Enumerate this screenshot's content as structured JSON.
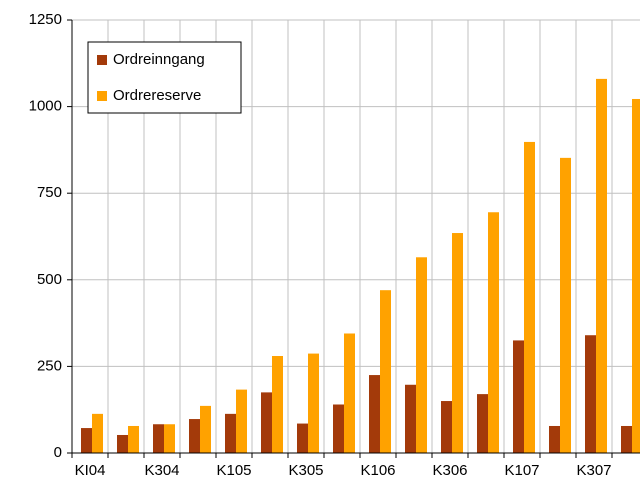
{
  "chart_data": {
    "type": "bar",
    "categories": [
      "KI04",
      null,
      "K304",
      null,
      "K105",
      null,
      "K305",
      null,
      "K106",
      null,
      "K306",
      null,
      "K107",
      null,
      "K307",
      null
    ],
    "series": [
      {
        "name": "Ordreinngang",
        "color": "#a33a0a",
        "values": [
          72,
          52,
          83,
          98,
          113,
          175,
          85,
          140,
          225,
          197,
          150,
          170,
          325,
          78,
          340,
          78
        ]
      },
      {
        "name": "Ordrereserve",
        "color": "#ffa200",
        "values": [
          113,
          78,
          83,
          136,
          183,
          280,
          287,
          345,
          470,
          565,
          635,
          695,
          898,
          852,
          1080,
          1022
        ]
      }
    ],
    "ylim": [
      0,
      1250
    ],
    "yticks": [
      0,
      250,
      500,
      750,
      1000,
      1250
    ],
    "grid": true,
    "legend": "upper left"
  }
}
